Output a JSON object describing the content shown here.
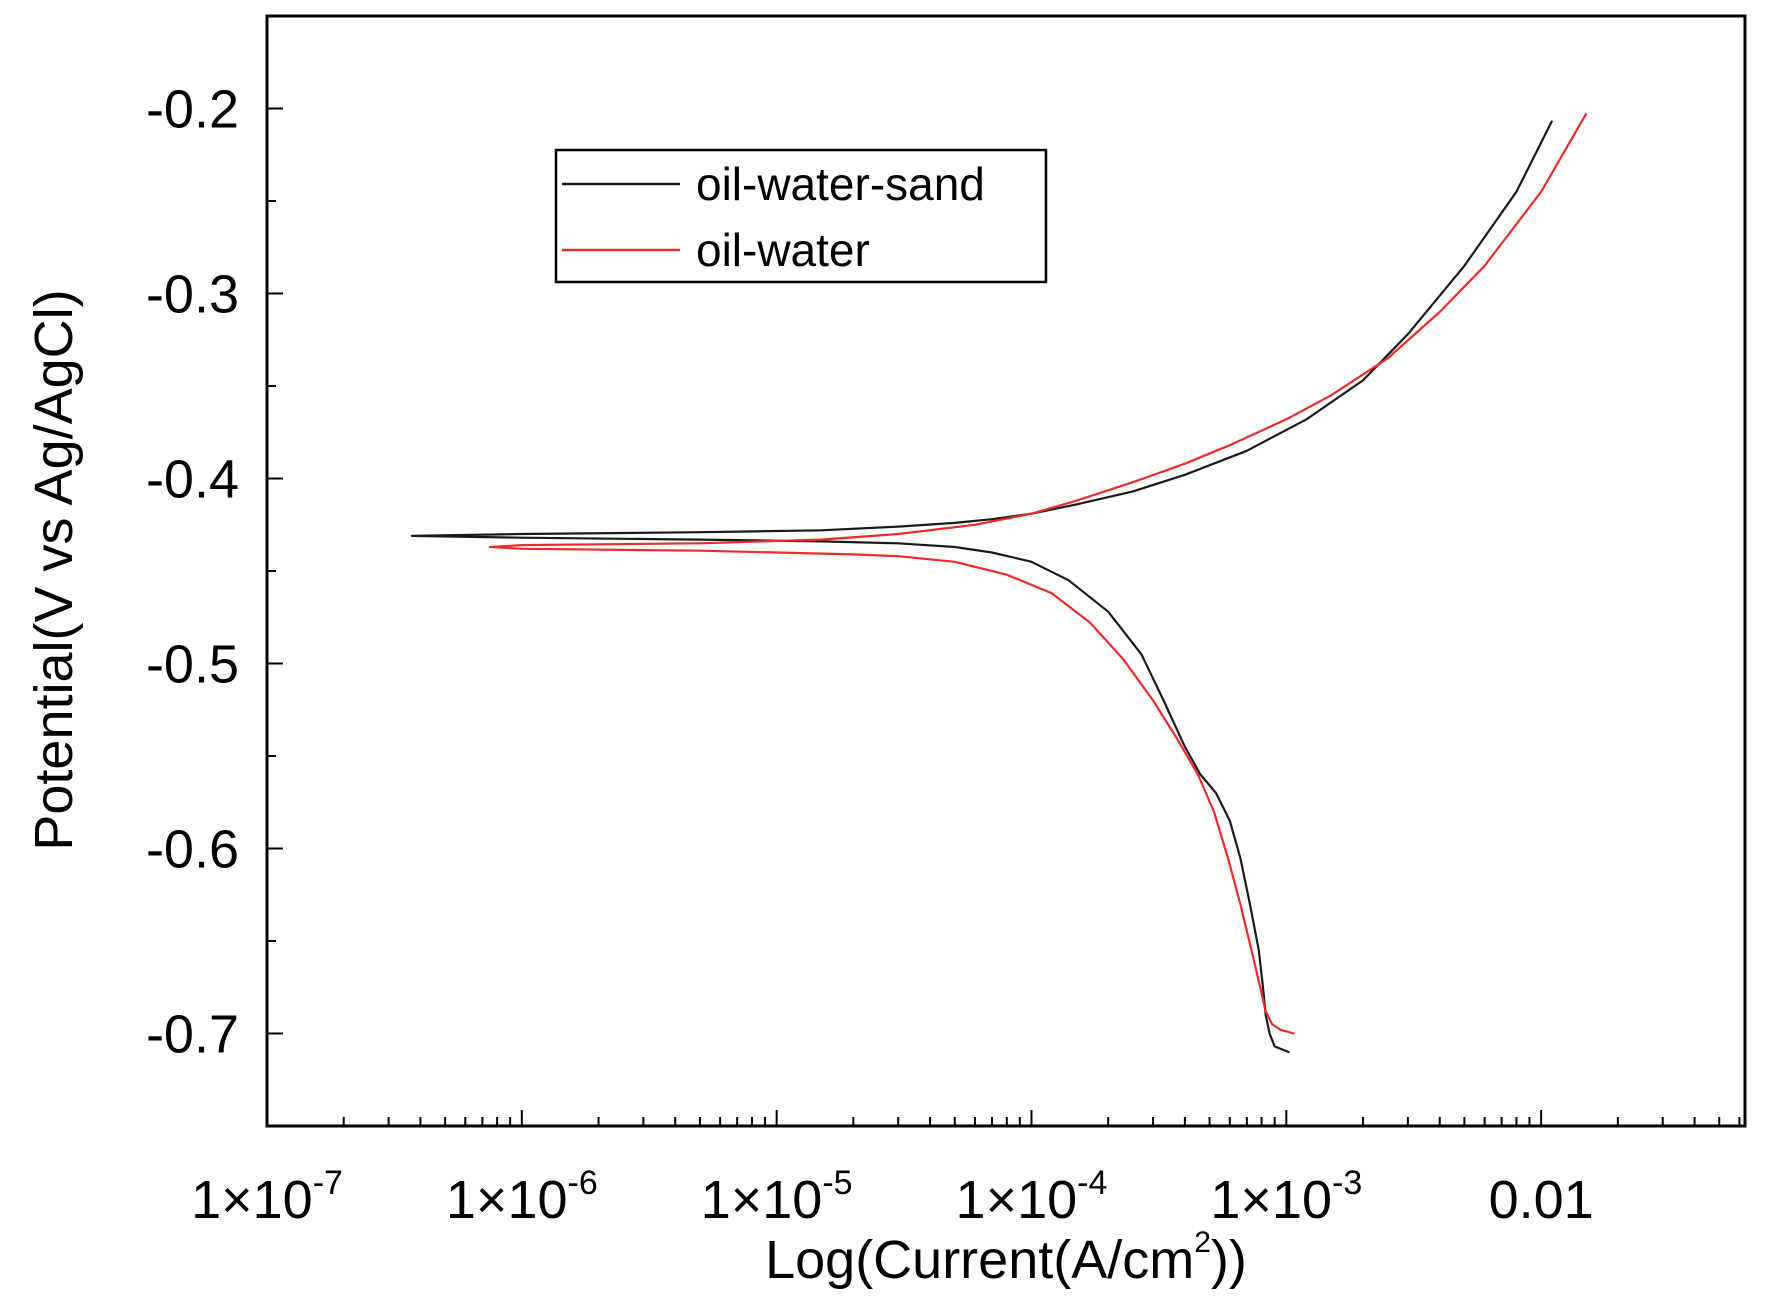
{
  "chart_data": {
    "type": "line",
    "title": "",
    "xlabel": "Log(Current(A/cm",
    "xlabel_sup": "2",
    "xlabel_suffix": "))",
    "ylabel": "Potential(V vs Ag/AgCl)",
    "x_scale": "log",
    "xlim": [
      1e-07,
      0.0631
    ],
    "ylim": [
      -0.75,
      -0.15
    ],
    "x_ticks": [
      {
        "value": 1e-07,
        "mult": "1×10",
        "exp": "-7"
      },
      {
        "value": 1e-06,
        "mult": "1×10",
        "exp": "-6"
      },
      {
        "value": 1e-05,
        "mult": "1×10",
        "exp": "-5"
      },
      {
        "value": 0.0001,
        "mult": "1×10",
        "exp": "-4"
      },
      {
        "value": 0.001,
        "mult": "1×10",
        "exp": "-3"
      },
      {
        "value": 0.01,
        "mult": "0.01",
        "exp": ""
      }
    ],
    "y_ticks": [
      {
        "value": -0.2,
        "label": "-0.2"
      },
      {
        "value": -0.3,
        "label": "-0.3"
      },
      {
        "value": -0.4,
        "label": "-0.4"
      },
      {
        "value": -0.5,
        "label": "-0.5"
      },
      {
        "value": -0.6,
        "label": "-0.6"
      },
      {
        "value": -0.7,
        "label": "-0.7"
      }
    ],
    "legend_position": "top-left",
    "series": [
      {
        "name": "oil-water-sand",
        "color": "#1a1a1a",
        "x": [
          0.011,
          0.008,
          0.005,
          0.003,
          0.002,
          0.0012,
          0.0007,
          0.0004,
          0.00025,
          0.00015,
          0.0001,
          7e-05,
          5e-05,
          3e-05,
          1.5e-05,
          5e-06,
          1e-06,
          3.7e-07,
          1e-06,
          5e-06,
          1.5e-05,
          3e-05,
          5e-05,
          7e-05,
          0.0001,
          0.00014,
          0.0002,
          0.00027,
          0.00033,
          0.0004,
          0.00046,
          0.00053,
          0.0006,
          0.00066,
          0.00072,
          0.00078,
          0.00081,
          0.00083,
          0.00086,
          0.0009,
          0.00102
        ],
        "y": [
          -0.207,
          -0.245,
          -0.285,
          -0.322,
          -0.347,
          -0.368,
          -0.385,
          -0.398,
          -0.407,
          -0.414,
          -0.419,
          -0.422,
          -0.424,
          -0.426,
          -0.428,
          -0.429,
          -0.43,
          -0.431,
          -0.432,
          -0.433,
          -0.434,
          -0.435,
          -0.437,
          -0.44,
          -0.445,
          -0.455,
          -0.472,
          -0.495,
          -0.52,
          -0.545,
          -0.56,
          -0.57,
          -0.585,
          -0.605,
          -0.63,
          -0.655,
          -0.675,
          -0.69,
          -0.7,
          -0.707,
          -0.71
        ]
      },
      {
        "name": "oil-water",
        "color": "#ee2a2a",
        "x": [
          0.015,
          0.01,
          0.006,
          0.004,
          0.0025,
          0.0015,
          0.001,
          0.0006,
          0.0004,
          0.00025,
          0.00015,
          0.0001,
          6e-05,
          3e-05,
          1.5e-05,
          5e-06,
          1e-06,
          7.5e-07,
          1e-06,
          5e-06,
          1e-05,
          2e-05,
          3e-05,
          5e-05,
          8e-05,
          0.00012,
          0.00017,
          0.00023,
          0.0003,
          0.00037,
          0.00045,
          0.00052,
          0.00059,
          0.00066,
          0.00073,
          0.00079,
          0.00083,
          0.00088,
          0.00095,
          0.00107
        ],
        "y": [
          -0.203,
          -0.245,
          -0.285,
          -0.31,
          -0.335,
          -0.355,
          -0.368,
          -0.382,
          -0.392,
          -0.402,
          -0.412,
          -0.419,
          -0.425,
          -0.43,
          -0.433,
          -0.435,
          -0.436,
          -0.437,
          -0.438,
          -0.439,
          -0.44,
          -0.441,
          -0.442,
          -0.445,
          -0.452,
          -0.462,
          -0.478,
          -0.498,
          -0.52,
          -0.54,
          -0.56,
          -0.58,
          -0.605,
          -0.63,
          -0.655,
          -0.675,
          -0.688,
          -0.695,
          -0.698,
          -0.7
        ]
      }
    ]
  }
}
